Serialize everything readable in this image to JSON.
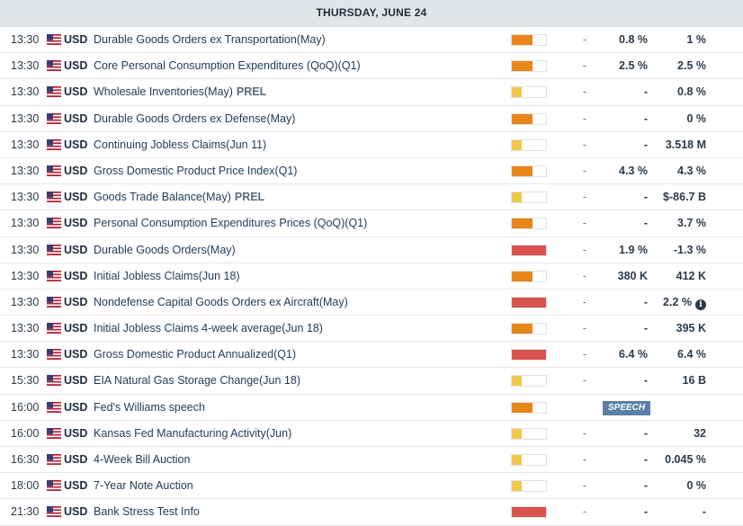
{
  "day_header": "THURSDAY, JUNE 24",
  "colors": {
    "high": "#d9534f",
    "medium": "#e8861a",
    "low": "#f2c84b"
  },
  "flag_icon": "us-flag-icon",
  "events": [
    {
      "time": "13:30",
      "currency": "USD",
      "name": "Durable Goods Orders ex Transportation(May)",
      "tag": "",
      "impact": "medium",
      "fill": 0.6,
      "actual": "-",
      "forecast": "0.8 %",
      "previous": "1 %",
      "info": false,
      "speech": ""
    },
    {
      "time": "13:30",
      "currency": "USD",
      "name": "Core Personal Consumption Expenditures (QoQ)(Q1)",
      "tag": "",
      "impact": "medium",
      "fill": 0.6,
      "actual": "-",
      "forecast": "2.5 %",
      "previous": "2.5 %",
      "info": false,
      "speech": ""
    },
    {
      "time": "13:30",
      "currency": "USD",
      "name": "Wholesale Inventories(May)",
      "tag": "PREL",
      "impact": "low",
      "fill": 0.3,
      "actual": "-",
      "forecast": "-",
      "previous": "0.8 %",
      "info": false,
      "speech": ""
    },
    {
      "time": "13:30",
      "currency": "USD",
      "name": "Durable Goods Orders ex Defense(May)",
      "tag": "",
      "impact": "medium",
      "fill": 0.6,
      "actual": "-",
      "forecast": "-",
      "previous": "0 %",
      "info": false,
      "speech": ""
    },
    {
      "time": "13:30",
      "currency": "USD",
      "name": "Continuing Jobless Claims(Jun 11)",
      "tag": "",
      "impact": "low",
      "fill": 0.3,
      "actual": "-",
      "forecast": "-",
      "previous": "3.518 M",
      "info": false,
      "speech": ""
    },
    {
      "time": "13:30",
      "currency": "USD",
      "name": "Gross Domestic Product Price Index(Q1)",
      "tag": "",
      "impact": "medium",
      "fill": 0.6,
      "actual": "-",
      "forecast": "4.3 %",
      "previous": "4.3 %",
      "info": false,
      "speech": ""
    },
    {
      "time": "13:30",
      "currency": "USD",
      "name": "Goods Trade Balance(May)",
      "tag": "PREL",
      "impact": "low",
      "fill": 0.3,
      "actual": "-",
      "forecast": "-",
      "previous": "$-86.7 B",
      "info": false,
      "speech": ""
    },
    {
      "time": "13:30",
      "currency": "USD",
      "name": "Personal Consumption Expenditures Prices (QoQ)(Q1)",
      "tag": "",
      "impact": "medium",
      "fill": 0.6,
      "actual": "-",
      "forecast": "-",
      "previous": "3.7 %",
      "info": false,
      "speech": ""
    },
    {
      "time": "13:30",
      "currency": "USD",
      "name": "Durable Goods Orders(May)",
      "tag": "",
      "impact": "high",
      "fill": 1.0,
      "actual": "-",
      "forecast": "1.9 %",
      "previous": "-1.3 %",
      "info": false,
      "speech": ""
    },
    {
      "time": "13:30",
      "currency": "USD",
      "name": "Initial Jobless Claims(Jun 18)",
      "tag": "",
      "impact": "medium",
      "fill": 0.6,
      "actual": "-",
      "forecast": "380 K",
      "previous": "412 K",
      "info": false,
      "speech": ""
    },
    {
      "time": "13:30",
      "currency": "USD",
      "name": "Nondefense Capital Goods Orders ex Aircraft(May)",
      "tag": "",
      "impact": "high",
      "fill": 1.0,
      "actual": "-",
      "forecast": "-",
      "previous": "2.2 %",
      "info": true,
      "speech": ""
    },
    {
      "time": "13:30",
      "currency": "USD",
      "name": "Initial Jobless Claims 4-week average(Jun 18)",
      "tag": "",
      "impact": "medium",
      "fill": 0.6,
      "actual": "-",
      "forecast": "-",
      "previous": "395 K",
      "info": false,
      "speech": ""
    },
    {
      "time": "13:30",
      "currency": "USD",
      "name": "Gross Domestic Product Annualized(Q1)",
      "tag": "",
      "impact": "high",
      "fill": 1.0,
      "actual": "-",
      "forecast": "6.4 %",
      "previous": "6.4 %",
      "info": false,
      "speech": ""
    },
    {
      "time": "15:30",
      "currency": "USD",
      "name": "EIA Natural Gas Storage Change(Jun 18)",
      "tag": "",
      "impact": "low",
      "fill": 0.3,
      "actual": "-",
      "forecast": "-",
      "previous": "16 B",
      "info": false,
      "speech": ""
    },
    {
      "time": "16:00",
      "currency": "USD",
      "name": "Fed's Williams speech",
      "tag": "",
      "impact": "medium",
      "fill": 0.6,
      "actual": "",
      "forecast": "",
      "previous": "",
      "info": false,
      "speech": "SPEECH"
    },
    {
      "time": "16:00",
      "currency": "USD",
      "name": "Kansas Fed Manufacturing Activity(Jun)",
      "tag": "",
      "impact": "low",
      "fill": 0.3,
      "actual": "-",
      "forecast": "-",
      "previous": "32",
      "info": false,
      "speech": ""
    },
    {
      "time": "16:30",
      "currency": "USD",
      "name": "4-Week Bill Auction",
      "tag": "",
      "impact": "low",
      "fill": 0.3,
      "actual": "-",
      "forecast": "-",
      "previous": "0.045 %",
      "info": false,
      "speech": ""
    },
    {
      "time": "18:00",
      "currency": "USD",
      "name": "7-Year Note Auction",
      "tag": "",
      "impact": "low",
      "fill": 0.3,
      "actual": "-",
      "forecast": "-",
      "previous": "0 %",
      "info": false,
      "speech": ""
    },
    {
      "time": "21:30",
      "currency": "USD",
      "name": "Bank Stress Test Info",
      "tag": "",
      "impact": "high",
      "fill": 1.0,
      "actual": "-",
      "forecast": "-",
      "previous": "-",
      "info": false,
      "speech": ""
    }
  ]
}
